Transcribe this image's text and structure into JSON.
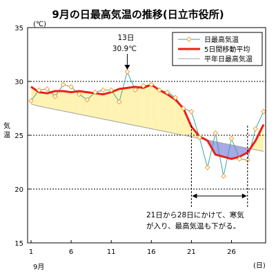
{
  "chart_data": {
    "type": "line",
    "title": "9月の日最高気温の推移(日立市役所)",
    "y_unit": "(℃)",
    "ylabel": "気温",
    "x_unit": "(日)",
    "x_month_label": "9月",
    "xlim": [
      1,
      30
    ],
    "ylim": [
      15,
      35
    ],
    "x_ticks": [
      1,
      6,
      11,
      16,
      21,
      26
    ],
    "y_ticks": [
      15,
      20,
      25,
      30,
      35
    ],
    "grid_dashed_at": [
      20,
      25,
      30
    ],
    "legend_position": "top-right",
    "x": [
      1,
      2,
      3,
      4,
      5,
      6,
      7,
      8,
      9,
      10,
      11,
      12,
      13,
      14,
      15,
      16,
      17,
      18,
      19,
      20,
      21,
      22,
      23,
      24,
      25,
      26,
      27,
      28,
      29,
      30
    ],
    "series": [
      {
        "name": "日最高気温",
        "color": "#3aa6a0",
        "marker_color": "#f0a030",
        "values": [
          28.2,
          29.2,
          29.3,
          28.6,
          29.7,
          29.5,
          28.8,
          28.3,
          29.0,
          29.2,
          29.2,
          28.1,
          30.9,
          29.2,
          29.6,
          29.7,
          29.2,
          29.0,
          28.5,
          27.5,
          27.2,
          24.8,
          22.0,
          25.2,
          21.2,
          24.7,
          22.8,
          22.7,
          25.6,
          27.2
        ]
      },
      {
        "name": "5日間移動平均",
        "color": "#e8201a",
        "values": [
          29.5,
          29.0,
          28.9,
          29.1,
          29.1,
          29.0,
          29.1,
          29.0,
          28.9,
          28.8,
          29.0,
          29.3,
          29.4,
          29.5,
          29.4,
          29.7,
          29.2,
          28.8,
          28.3,
          27.5,
          25.8,
          24.9,
          24.5,
          23.2,
          23.0,
          22.8,
          23.0,
          23.4,
          24.5,
          26.0
        ]
      },
      {
        "name": "平年日最高気温",
        "color": "#a0a0a0",
        "values": [
          27.9,
          27.7,
          27.55,
          27.4,
          27.25,
          27.1,
          26.95,
          26.8,
          26.65,
          26.5,
          26.35,
          26.2,
          26.05,
          25.9,
          25.75,
          25.6,
          25.45,
          25.3,
          25.15,
          25.0,
          24.85,
          24.7,
          24.55,
          24.4,
          24.25,
          24.1,
          23.95,
          23.8,
          23.65,
          23.5
        ]
      }
    ],
    "fill_above_normal_color": "#fff3b3",
    "fill_below_normal_color": "#a8a8e8",
    "annotations": {
      "peak_day_label": "13日",
      "peak_value_label": "30.9℃",
      "peak_day": 13,
      "peak_value": 30.9,
      "cold_period_start_day": 21,
      "cold_period_end_day": 28,
      "cold_period_text_line1": "21日から28日にかけて、寒気",
      "cold_period_text_line2": "が入り、最高気温も下がる。"
    }
  }
}
